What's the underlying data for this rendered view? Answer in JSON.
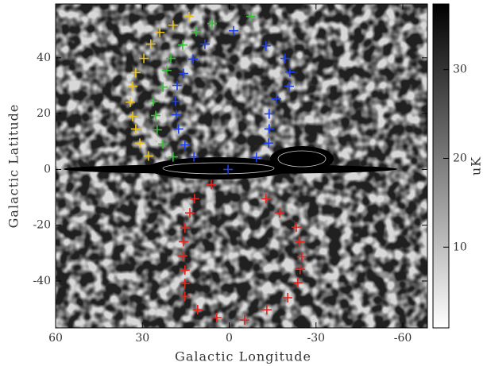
{
  "chart_data": {
    "type": "scatter",
    "x_label": "Galactic Longitude",
    "y_label": "Galactic Latitude",
    "xlim": [
      60,
      -68.5
    ],
    "ylim": [
      -56.8,
      59.3
    ],
    "xticks": [
      60,
      30,
      0,
      -30,
      -60
    ],
    "yticks": [
      40,
      20,
      0,
      -20,
      -40
    ],
    "colorbar": {
      "label": "uK",
      "lim": [
        0.9,
        37.4
      ],
      "ticks": [
        30,
        20,
        10
      ]
    },
    "series": [
      {
        "color": "#e8c21a",
        "x": [
          13.9,
          19.4,
          24.0,
          27.1,
          29.5,
          32.3,
          33.4,
          34.2,
          33.4,
          32.3,
          30.9,
          27.9
        ],
        "values": [
          54.8,
          51.7,
          49.1,
          44.9,
          39.8,
          34.7,
          29.8,
          24.1,
          19.0,
          14.5,
          9.4,
          4.8
        ]
      },
      {
        "color": "#2fc42f",
        "x": [
          -7.5,
          5.9,
          11.4,
          16.1,
          20.2,
          21.6,
          22.9,
          26.2,
          25.4,
          24.9,
          22.9,
          19.4
        ],
        "values": [
          54.8,
          52.3,
          49.4,
          44.6,
          39.8,
          35.5,
          29.5,
          24.4,
          19.3,
          14.2,
          9.1,
          4.5
        ]
      },
      {
        "color": "#1f3fe8",
        "x": [
          -1.5,
          8.4,
          12.5,
          15.8,
          18.0,
          18.6,
          18.3,
          17.5,
          15.3,
          12.2,
          0.4,
          -9.4,
          -13.6,
          -13.8,
          -13.8,
          -16.3,
          -20.7,
          -21.0,
          -19.3,
          -12.7
        ],
        "values": [
          49.7,
          44.9,
          39.5,
          34.4,
          30.1,
          24.4,
          19.6,
          14.5,
          8.8,
          4.5,
          0,
          4.3,
          9.4,
          14.5,
          19.9,
          25.3,
          29.8,
          34.9,
          39.8,
          44.3
        ]
      },
      {
        "color": "#e8241f",
        "x": [
          6.2,
          12.0,
          13.6,
          15.3,
          15.8,
          16.1,
          15.3,
          15.3,
          15.3,
          10.9,
          4.3,
          -5.3,
          -13.0,
          -20.2,
          -23.7,
          -24.5,
          -25.1,
          -24.3,
          -23.2,
          -17.4,
          -12.7
        ],
        "values": [
          -5.4,
          -10.5,
          -15.6,
          -21.0,
          -25.9,
          -31.0,
          -36.1,
          -40.9,
          -45.5,
          -50.3,
          -53.1,
          -54.0,
          -50.3,
          -46.0,
          -40.6,
          -35.8,
          -31.3,
          -25.9,
          -20.7,
          -15.6,
          -10.5
        ]
      }
    ]
  }
}
